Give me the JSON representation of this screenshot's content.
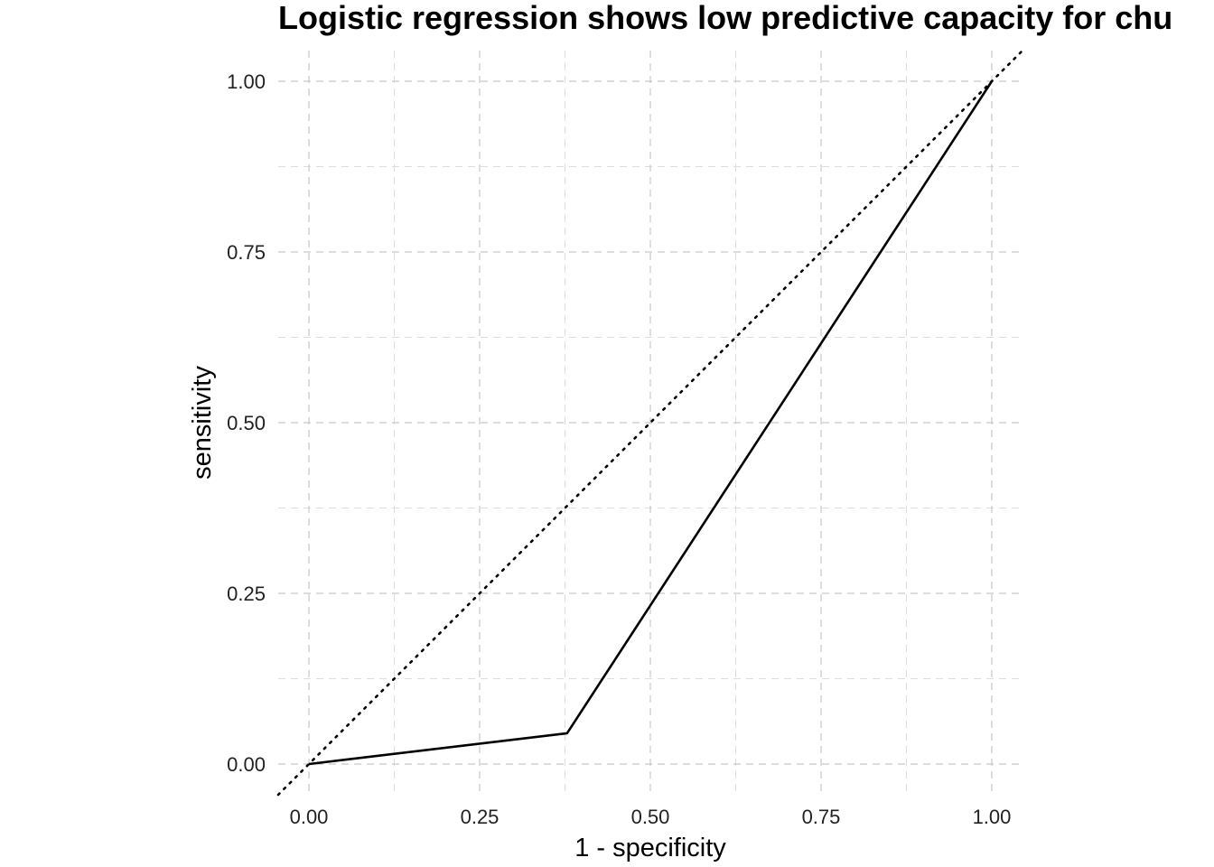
{
  "chart_data": {
    "type": "line",
    "title": "Logistic regression shows low predictive capacity for chu",
    "xlabel": "1 - specificity",
    "ylabel": "sensitivity",
    "xlim": [
      -0.045,
      1.045
    ],
    "ylim": [
      -0.045,
      1.045
    ],
    "x_ticks": [
      0.0,
      0.25,
      0.5,
      0.75,
      1.0
    ],
    "y_ticks": [
      0.0,
      0.25,
      0.5,
      0.75,
      1.0
    ],
    "x_tick_labels": [
      "0.00",
      "0.25",
      "0.50",
      "0.75",
      "1.00"
    ],
    "y_tick_labels": [
      "0.00",
      "0.25",
      "0.50",
      "0.75",
      "1.00"
    ],
    "grid": true,
    "series": [
      {
        "points": [
          [
            0.0,
            0.0
          ],
          [
            0.378,
            0.045
          ],
          [
            1.0,
            1.0
          ]
        ],
        "color": "#000000",
        "style": "solid"
      },
      {
        "points": [
          [
            -0.045,
            -0.045
          ],
          [
            1.045,
            1.045
          ]
        ],
        "color": "#000000",
        "style": "dotted"
      }
    ]
  }
}
